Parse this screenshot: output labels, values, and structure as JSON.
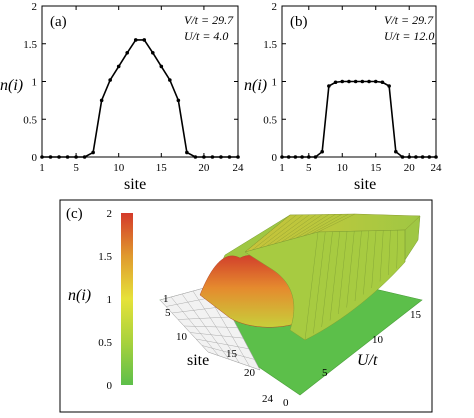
{
  "chart_data": [
    {
      "type": "line",
      "panel": "(a)",
      "params": [
        "V/t = 29.7",
        "U/t = 4.0"
      ],
      "xlabel": "site",
      "ylabel": "n(i)",
      "xlim": [
        1,
        24
      ],
      "ylim": [
        0,
        2
      ],
      "xticks": [
        1,
        5,
        10,
        15,
        20,
        24
      ],
      "yticks": [
        0,
        0.5,
        1,
        1.5,
        2
      ],
      "x": [
        1,
        2,
        3,
        4,
        5,
        6,
        7,
        8,
        9,
        10,
        11,
        12,
        13,
        14,
        15,
        16,
        17,
        18,
        19,
        20,
        21,
        22,
        23,
        24
      ],
      "values": [
        0,
        0,
        0,
        0,
        0,
        0,
        0.06,
        0.75,
        1.02,
        1.2,
        1.38,
        1.55,
        1.55,
        1.38,
        1.2,
        1.02,
        0.75,
        0.06,
        0,
        0,
        0,
        0,
        0,
        0
      ]
    },
    {
      "type": "line",
      "panel": "(b)",
      "params": [
        "V/t = 29.7",
        "U/t = 12.0"
      ],
      "xlabel": "site",
      "ylabel": "n(i)",
      "xlim": [
        1,
        24
      ],
      "ylim": [
        0,
        2
      ],
      "xticks": [
        1,
        5,
        10,
        15,
        20,
        24
      ],
      "yticks": [
        0,
        0.5,
        1,
        1.5,
        2
      ],
      "x": [
        1,
        2,
        3,
        4,
        5,
        6,
        7,
        8,
        9,
        10,
        11,
        12,
        13,
        14,
        15,
        16,
        17,
        18,
        19,
        20,
        21,
        22,
        23,
        24
      ],
      "values": [
        0,
        0,
        0,
        0,
        0,
        0,
        0.07,
        0.94,
        0.99,
        1,
        1,
        1,
        1,
        1,
        1,
        0.99,
        0.94,
        0.07,
        0,
        0,
        0,
        0,
        0,
        0
      ]
    },
    {
      "type": "surface",
      "panel": "(c)",
      "params": [
        "V/t = 29.7"
      ],
      "xlabel": "site",
      "ylabel": "U/t",
      "zlabel": "n(i)",
      "site_ticks": [
        5,
        10,
        15,
        20,
        24
      ],
      "u_ticks": [
        0,
        5,
        10,
        15
      ],
      "colorbar_ticks": [
        0,
        0.5,
        1,
        1.5,
        2
      ],
      "colorbar_colors": [
        "#5dbf4a",
        "#a8d23c",
        "#e6e23a",
        "#e09a2e",
        "#d43a2a"
      ],
      "surface_side_label": "1",
      "description_values": {
        "U_small_peak": 2.0,
        "U_large_plateau": 1.0
      }
    }
  ]
}
